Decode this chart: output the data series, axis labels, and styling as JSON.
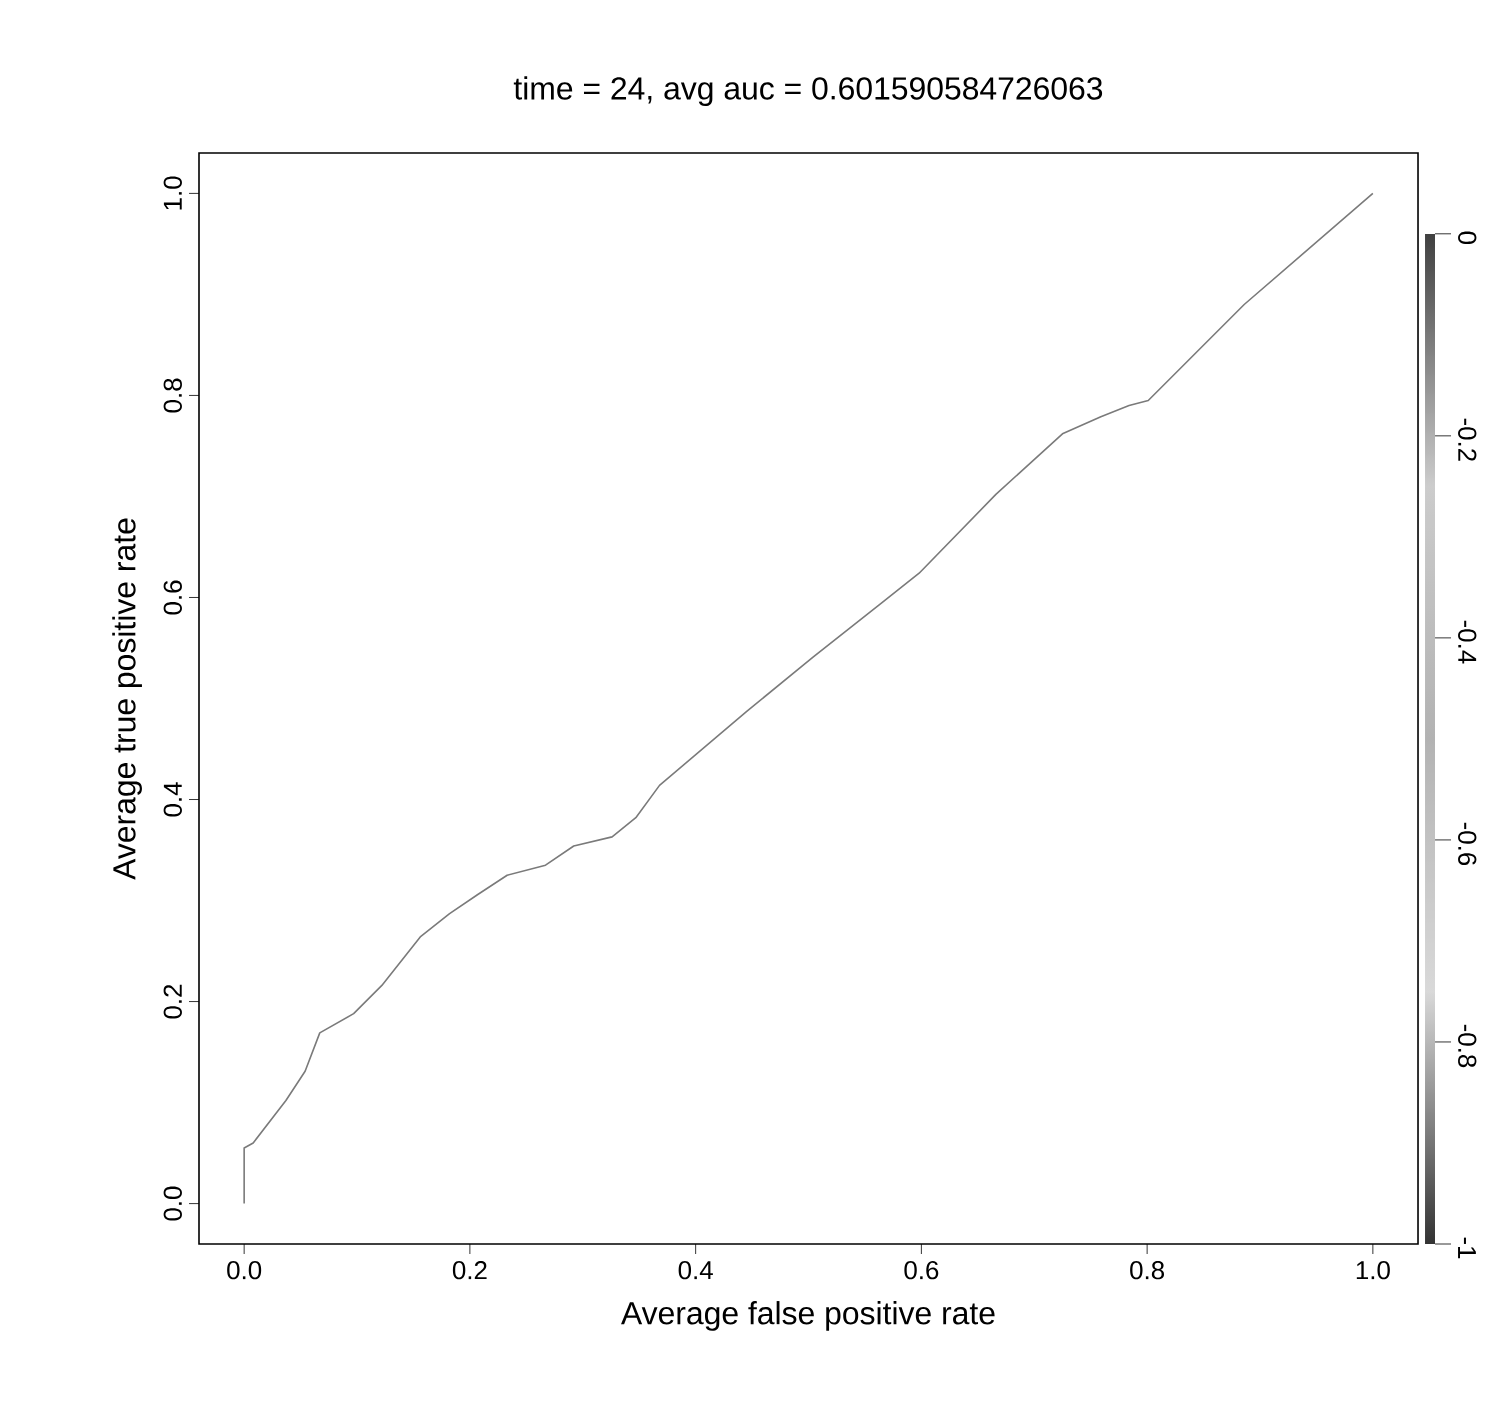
{
  "chart_data": {
    "type": "line",
    "title": "time = 24, avg auc = 0.601590584726063",
    "xlabel": "Average false positive rate",
    "ylabel": "Average true positive rate",
    "xlim": [
      -0.04,
      1.04
    ],
    "ylim": [
      -0.04,
      1.04
    ],
    "xticks": [
      {
        "value": 0,
        "label": "0.0"
      },
      0.2,
      0.4,
      0.6,
      0.8,
      {
        "value": 1,
        "label": "1.0"
      }
    ],
    "yticks": [
      {
        "value": 0,
        "label": "0.0"
      },
      0.2,
      0.4,
      0.6,
      0.8,
      {
        "value": 1,
        "label": "1.0"
      }
    ],
    "clim": [
      -1,
      0
    ],
    "cticks": [
      -1,
      -0.8,
      -0.6,
      -0.4,
      -0.2,
      0
    ],
    "grid": false,
    "marker": "none",
    "line_style": "solid",
    "series": [
      {
        "color": "#7a7a7a",
        "x": [
          0,
          0,
          0.008,
          0.037,
          0.054,
          0.067,
          0.097,
          0.122,
          0.156,
          0.182,
          0.207,
          0.233,
          0.267,
          0.292,
          0.326,
          0.347,
          0.368,
          0.445,
          0.504,
          0.564,
          0.598,
          0.666,
          0.725,
          0.759,
          0.784,
          0.801,
          0.886,
          1.0
        ],
        "values": [
          0,
          0.055,
          0.06,
          0.102,
          0.131,
          0.169,
          0.188,
          0.216,
          0.264,
          0.287,
          0.306,
          0.325,
          0.335,
          0.354,
          0.363,
          0.382,
          0.414,
          0.487,
          0.541,
          0.594,
          0.624,
          0.702,
          0.762,
          0.779,
          0.79,
          0.795,
          0.89,
          1.0
        ]
      }
    ]
  }
}
